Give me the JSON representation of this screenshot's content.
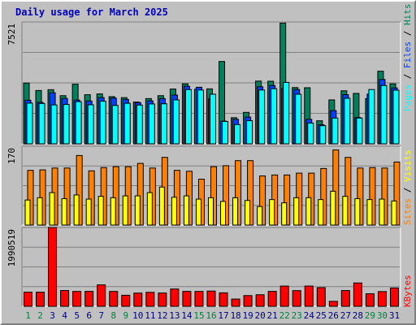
{
  "window": {
    "title": "Daily usage for March 2025"
  },
  "colors": {
    "background": "#c0c0c0",
    "panel": "#c0c0c0",
    "hits": "#00805c",
    "files": "#0040ff",
    "pages": "#00ffff",
    "visits": "#ff8000",
    "sites": "#ffff00",
    "kbytes": "#ff0000",
    "title": "#0000c0",
    "weekday": "#000080",
    "weekend": "#008040"
  },
  "chart_data": [
    {
      "type": "bar",
      "title": "Daily usage for March 2025",
      "panel": "hits-files-pages",
      "ylabel_parts": [
        "Pages",
        "Files",
        "Hits"
      ],
      "ymax_label": "7521",
      "ylim": [
        0,
        7521
      ],
      "grid": true,
      "categories": [
        "1",
        "2",
        "3",
        "4",
        "5",
        "6",
        "7",
        "8",
        "9",
        "10",
        "11",
        "12",
        "13",
        "14",
        "15",
        "16",
        "17",
        "18",
        "19",
        "20",
        "21",
        "22",
        "23",
        "24",
        "25",
        "26",
        "27",
        "28",
        "29",
        "30",
        "31"
      ],
      "series": [
        {
          "name": "Hits",
          "values": [
            3750,
            3290,
            3340,
            2970,
            3680,
            3030,
            3080,
            2910,
            2850,
            2580,
            2790,
            2970,
            3380,
            3700,
            3370,
            3390,
            5080,
            1610,
            1940,
            3870,
            3860,
            7450,
            3470,
            3460,
            1420,
            2710,
            3270,
            3110,
            2790,
            4480,
            3700
          ]
        },
        {
          "name": "Files",
          "values": [
            2690,
            2560,
            3150,
            2800,
            2700,
            2640,
            2850,
            2820,
            2740,
            2540,
            2650,
            2790,
            3010,
            3550,
            3490,
            2770,
            1400,
            1510,
            1650,
            3520,
            3600,
            3420,
            3350,
            1510,
            1180,
            2050,
            3030,
            1620,
            3070,
            3970,
            3450
          ]
        },
        {
          "name": "Pages",
          "values": [
            2510,
            2490,
            2400,
            2430,
            2600,
            2410,
            2630,
            2370,
            2500,
            2390,
            2460,
            2470,
            2710,
            3350,
            3320,
            3060,
            1380,
            1190,
            1430,
            3320,
            3400,
            3790,
            3060,
            1280,
            1120,
            1590,
            2810,
            1590,
            3350,
            3600,
            3310
          ]
        }
      ]
    },
    {
      "type": "bar",
      "panel": "visits-sites",
      "ylabel_parts": [
        "Sites",
        "Visits"
      ],
      "ymax_label": "170",
      "ylim": [
        0,
        170
      ],
      "grid": true,
      "categories": [
        "1",
        "2",
        "3",
        "4",
        "5",
        "6",
        "7",
        "8",
        "9",
        "10",
        "11",
        "12",
        "13",
        "14",
        "15",
        "16",
        "17",
        "18",
        "19",
        "20",
        "21",
        "22",
        "23",
        "24",
        "25",
        "26",
        "27",
        "28",
        "29",
        "30",
        "31"
      ],
      "series": [
        {
          "name": "Visits",
          "values": [
            118,
            119,
            123,
            123,
            150,
            117,
            124,
            126,
            126,
            133,
            123,
            146,
            118,
            116,
            99,
            126,
            128,
            139,
            139,
            106,
            108,
            108,
            112,
            112,
            122,
            162,
            146,
            123,
            124,
            123,
            136
          ]
        },
        {
          "name": "Sites",
          "values": [
            54,
            59,
            70,
            57,
            65,
            56,
            62,
            59,
            63,
            63,
            70,
            82,
            60,
            63,
            56,
            59,
            51,
            59,
            53,
            40,
            55,
            48,
            59,
            59,
            55,
            73,
            62,
            57,
            55,
            56,
            52
          ]
        }
      ]
    },
    {
      "type": "bar",
      "panel": "kbytes",
      "ylabel_parts": [
        "KBytes"
      ],
      "ymax_label": "1990519",
      "ylim": [
        0,
        1990519
      ],
      "grid": true,
      "categories": [
        "1",
        "2",
        "3",
        "4",
        "5",
        "6",
        "7",
        "8",
        "9",
        "10",
        "11",
        "12",
        "13",
        "14",
        "15",
        "16",
        "17",
        "18",
        "19",
        "20",
        "21",
        "22",
        "23",
        "24",
        "25",
        "26",
        "27",
        "28",
        "29",
        "30",
        "31"
      ],
      "series": [
        {
          "name": "KBytes",
          "values": [
            357000,
            357000,
            1990519,
            399000,
            376000,
            377000,
            541000,
            376000,
            279000,
            334000,
            353000,
            336000,
            437000,
            377000,
            376000,
            385000,
            341000,
            183000,
            271000,
            292000,
            377000,
            511000,
            396000,
            512000,
            472000,
            125000,
            399000,
            590000,
            317000,
            372000,
            464000
          ]
        }
      ]
    }
  ],
  "weekend_days": [
    1,
    2,
    8,
    9,
    15,
    16,
    22,
    23,
    29,
    30
  ]
}
